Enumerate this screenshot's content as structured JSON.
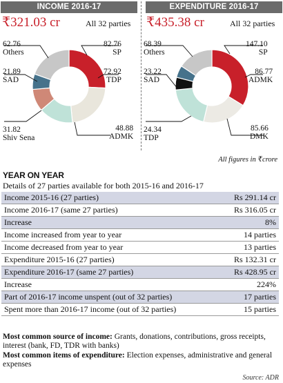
{
  "chart_data": [
    {
      "type": "pie",
      "title": "INCOME 2016-17",
      "total": "₹321.03 cr",
      "subtitle": "All 32 parties",
      "slices": [
        {
          "name": "SP",
          "value": 82.76,
          "color": "#c8202a"
        },
        {
          "name": "TDP",
          "value": 72.92,
          "color": "#e9e6dc"
        },
        {
          "name": "ADMK",
          "value": 48.88,
          "color": "#bfe2d8"
        },
        {
          "name": "Shiv Sena",
          "value": 31.82,
          "color": "#cf8877"
        },
        {
          "name": "SAD",
          "value": 21.89,
          "color": "#46728b"
        },
        {
          "name": "Others",
          "value": 62.76,
          "color": "#c7c7c7"
        }
      ],
      "labels": [
        {
          "value": "82.76",
          "name": "SP"
        },
        {
          "value": "72.92",
          "name": "TDP"
        },
        {
          "value": "48.88",
          "name": "ADMK"
        },
        {
          "value": "31.82",
          "name": "Shiv Sena"
        },
        {
          "value": "21.89",
          "name": "SAD"
        },
        {
          "value": "62.76",
          "name": "Others"
        }
      ]
    },
    {
      "type": "pie",
      "title": "EXPENDITURE 2016-17",
      "total": "₹435.38 cr",
      "subtitle": "All 32 parties",
      "slices": [
        {
          "name": "SP",
          "value": 147.1,
          "color": "#c8202a"
        },
        {
          "name": "ADMK",
          "value": 86.77,
          "color": "#eceae4"
        },
        {
          "name": "DMK",
          "value": 85.66,
          "color": "#bfe2d8"
        },
        {
          "name": "TDP",
          "value": 24.34,
          "color": "#111111"
        },
        {
          "name": "SAD",
          "value": 23.22,
          "color": "#46728b"
        },
        {
          "name": "Others",
          "value": 68.39,
          "color": "#c7c7c7"
        }
      ],
      "labels": [
        {
          "value": "147.10",
          "name": "SP"
        },
        {
          "value": "86.77",
          "name": "ADMK"
        },
        {
          "value": "85.66",
          "name": "DMK"
        },
        {
          "value": "24.34",
          "name": "TDP"
        },
        {
          "value": "23.22",
          "name": "SAD"
        },
        {
          "value": "68.39",
          "name": "Others"
        }
      ]
    },
    {
      "type": "table",
      "title": "YEAR ON YEAR",
      "subtitle": "Details of 27 parties available for both 2015-16 and 2016-17",
      "rows": [
        {
          "label": "Income 2015-16 (27 parties)",
          "value": "Rs 291.14 cr",
          "shaded": true
        },
        {
          "label": "Income 2016-17 (same 27 parties)",
          "value": "Rs 316.05 cr",
          "shaded": false
        },
        {
          "label": "Increase",
          "value": "8%",
          "shaded": true
        },
        {
          "label": "Income increased from year to year",
          "value": "14 parties",
          "shaded": false
        },
        {
          "label": "Income decreased from year to year",
          "value": "13 parties",
          "shaded": false
        },
        {
          "label": "Expenditure 2015-16 (27 parties)",
          "value": "Rs 132.31 cr",
          "shaded": false
        },
        {
          "label": "Expenditure 2016-17 (same 27 parties)",
          "value": "Rs 428.95 cr",
          "shaded": true
        },
        {
          "label": "Increase",
          "value": "224%",
          "shaded": false
        },
        {
          "label": "Part of 2016-17 income unspent (out of 32 parties)",
          "value": "17 parties",
          "shaded": true
        },
        {
          "label": "Spent more than 2016-17 income (out of 32 parties)",
          "value": "15 parties",
          "shaded": false
        }
      ]
    }
  ],
  "note": "All figures in ₹crore",
  "footer": {
    "income_label": "Most common source of income:",
    "income_text": " Grants, donations, contributions, gross receipts, interest (bank, FD, TDR with banks)",
    "expenditure_label": "Most common items of expenditure:",
    "expenditure_text": " Election expenses, administrative and general expenses"
  },
  "source": "Source: ADR"
}
